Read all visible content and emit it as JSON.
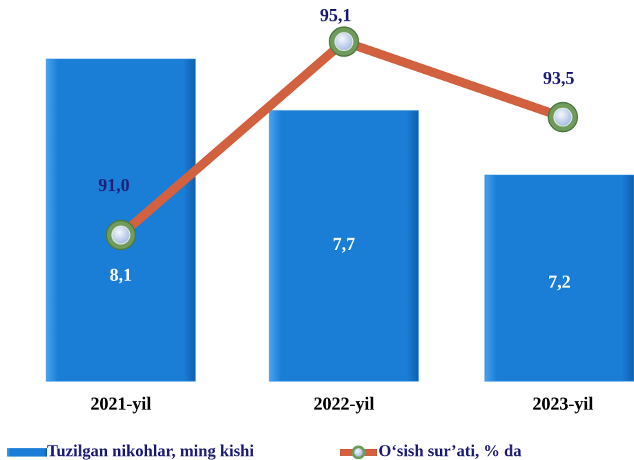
{
  "chart_data": {
    "type": "bar",
    "categories": [
      "2021-yil",
      "2022-yil",
      "2023-yil"
    ],
    "series": [
      {
        "name": "Tuzilgan nikohlar, ming kishi",
        "type": "bar",
        "color": "#1a7dd6",
        "values": [
          8.1,
          7.7,
          7.2
        ],
        "value_labels": [
          "8,1",
          "7,7",
          "7,2"
        ]
      },
      {
        "name": "O‘sish sur’ati, % da",
        "type": "line",
        "axis": "y2",
        "color": "#d2613f",
        "values": [
          91.0,
          95.1,
          93.5
        ],
        "value_labels": [
          "91,0",
          "95,1",
          "93,5"
        ]
      }
    ],
    "ylim": [
      5.6,
      8.6
    ],
    "y2lim": [
      87.9,
      96.1
    ],
    "legend": "bottom"
  }
}
